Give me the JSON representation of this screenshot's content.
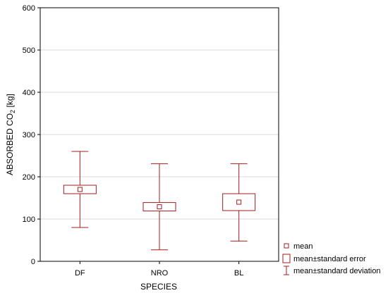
{
  "chart_data": {
    "type": "box",
    "xlabel": "SPECIES",
    "ylabel": {
      "prefix": "ABSORBED CO",
      "subscript": "2",
      "suffix": " [kg]"
    },
    "ylim": [
      0,
      600
    ],
    "yticks": [
      0,
      100,
      200,
      300,
      400,
      500,
      600
    ],
    "grid": true,
    "legend_position": "bottom-right, outside plot",
    "color": "#a31d1d",
    "categories": [
      "DF",
      "NRO",
      "BL"
    ],
    "mean": [
      170,
      129,
      140
    ],
    "mean_minus_se": [
      160,
      119,
      120
    ],
    "mean_plus_se": [
      180,
      139,
      160
    ],
    "mean_minus_sd": [
      80,
      27,
      48
    ],
    "mean_plus_sd": [
      260,
      231,
      231
    ],
    "legend": [
      {
        "symbol": "mean-marker",
        "label": "mean"
      },
      {
        "symbol": "se-box",
        "label": "mean±standard error"
      },
      {
        "symbol": "sd-whisker",
        "label": "mean±standard deviation"
      }
    ]
  }
}
